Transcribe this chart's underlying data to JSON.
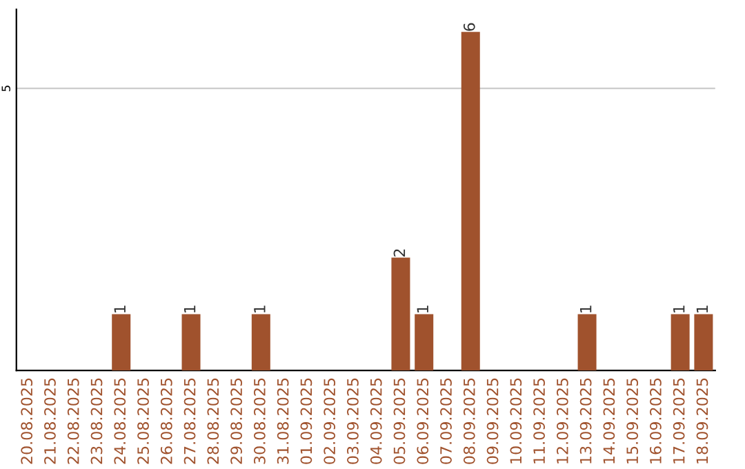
{
  "chart_data": {
    "type": "bar",
    "categories": [
      "20.08.2025",
      "21.08.2025",
      "22.08.2025",
      "23.08.2025",
      "24.08.2025",
      "25.08.2025",
      "26.08.2025",
      "27.08.2025",
      "28.08.2025",
      "29.08.2025",
      "30.08.2025",
      "31.08.2025",
      "01.09.2025",
      "02.09.2025",
      "03.09.2025",
      "04.09.2025",
      "05.09.2025",
      "06.09.2025",
      "07.09.2025",
      "08.09.2025",
      "09.09.2025",
      "10.09.2025",
      "11.09.2025",
      "12.09.2025",
      "13.09.2025",
      "14.09.2025",
      "15.09.2025",
      "16.09.2025",
      "17.09.2025",
      "18.09.2025"
    ],
    "values": [
      0,
      0,
      0,
      0,
      1,
      0,
      0,
      1,
      0,
      0,
      1,
      0,
      0,
      0,
      0,
      0,
      2,
      1,
      0,
      6,
      0,
      0,
      0,
      0,
      1,
      0,
      0,
      0,
      1,
      1
    ],
    "value_labels": [
      null,
      null,
      null,
      null,
      "1",
      null,
      null,
      "1",
      null,
      null,
      "1",
      null,
      null,
      null,
      null,
      null,
      "2",
      "1",
      null,
      "6",
      null,
      null,
      null,
      null,
      "1",
      null,
      null,
      null,
      "1",
      "1"
    ],
    "color": "#a0522d",
    "ylim": [
      0,
      6.4
    ],
    "yticks": [
      5
    ],
    "grid": "y",
    "legend": false
  }
}
